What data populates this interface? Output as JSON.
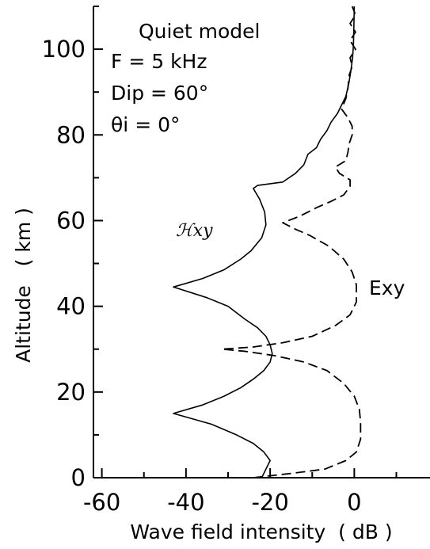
{
  "chart_data": {
    "type": "line",
    "xlabel": "Wave field intensity  ( dB )",
    "ylabel": "Altitude   ( km )",
    "xlim": [
      -62,
      18
    ],
    "ylim": [
      0,
      110
    ],
    "x_ticks": [
      "-60",
      "-40",
      "-20",
      "0"
    ],
    "x_tick_values": [
      -60,
      -40,
      -20,
      0
    ],
    "y_ticks": [
      "0",
      "20",
      "40",
      "60",
      "80",
      "100"
    ],
    "y_tick_values": [
      0,
      20,
      40,
      60,
      80,
      100
    ],
    "annotations": [
      "Quiet model",
      "F = 5 kHz",
      "Dip = 60°",
      "θi = 0°"
    ],
    "series": [
      {
        "name": "ℋxy",
        "style": "solid",
        "points": [
          [
            -22,
            0
          ],
          [
            -21,
            2
          ],
          [
            -20,
            4
          ],
          [
            -21.5,
            6
          ],
          [
            -24,
            8
          ],
          [
            -28,
            10
          ],
          [
            -34,
            12.5
          ],
          [
            -43,
            15
          ],
          [
            -36,
            17
          ],
          [
            -31,
            19
          ],
          [
            -27,
            21
          ],
          [
            -24,
            23
          ],
          [
            -21.5,
            25
          ],
          [
            -20,
            27
          ],
          [
            -19.5,
            29
          ],
          [
            -20,
            31
          ],
          [
            -21,
            33
          ],
          [
            -23,
            35
          ],
          [
            -26,
            37
          ],
          [
            -30,
            40
          ],
          [
            -35,
            42
          ],
          [
            -43,
            44.5
          ],
          [
            -36,
            46.5
          ],
          [
            -31,
            48.5
          ],
          [
            -27,
            51
          ],
          [
            -24.5,
            53
          ],
          [
            -22,
            56
          ],
          [
            -21,
            59
          ],
          [
            -21.3,
            62
          ],
          [
            -22.5,
            65
          ],
          [
            -24,
            67.5
          ],
          [
            -23,
            68.2
          ],
          [
            -17,
            69
          ],
          [
            -14,
            71
          ],
          [
            -12,
            73
          ],
          [
            -11,
            75.5
          ],
          [
            -9,
            77
          ],
          [
            -8,
            79
          ],
          [
            -6.5,
            81
          ],
          [
            -5.5,
            83
          ],
          [
            -4,
            85
          ],
          [
            -3,
            87
          ],
          [
            -2,
            89
          ],
          [
            -1.3,
            92
          ],
          [
            -0.8,
            95
          ],
          [
            -0.4,
            98
          ],
          [
            -0.2,
            101
          ],
          [
            -0.1,
            105
          ],
          [
            0,
            110
          ]
        ]
      },
      {
        "name": "Exy",
        "style": "dashed",
        "points": [
          [
            -24,
            0
          ],
          [
            -15,
            1
          ],
          [
            -7,
            2
          ],
          [
            -2,
            4
          ],
          [
            0.5,
            6
          ],
          [
            1.5,
            9
          ],
          [
            1.5,
            13
          ],
          [
            1.2,
            16
          ],
          [
            0,
            19
          ],
          [
            -2.5,
            22
          ],
          [
            -6.5,
            25
          ],
          [
            -12,
            27
          ],
          [
            -19,
            28.5
          ],
          [
            -26,
            29.5
          ],
          [
            -31.5,
            30
          ],
          [
            -24,
            30.5
          ],
          [
            -17,
            31.5
          ],
          [
            -10,
            33
          ],
          [
            -4.5,
            35.5
          ],
          [
            -1,
            38
          ],
          [
            0.5,
            41
          ],
          [
            0.5,
            45
          ],
          [
            -0.5,
            48
          ],
          [
            -2.5,
            51
          ],
          [
            -6,
            54
          ],
          [
            -10.5,
            56.5
          ],
          [
            -14,
            58
          ],
          [
            -17,
            59.5
          ],
          [
            -13,
            61
          ],
          [
            -9,
            63
          ],
          [
            -5.5,
            64.5
          ],
          [
            -2.5,
            66
          ],
          [
            -1,
            68
          ],
          [
            -1,
            69.5
          ],
          [
            -3.5,
            71
          ],
          [
            -4.5,
            72.5
          ],
          [
            -2,
            74
          ],
          [
            -1.5,
            76
          ],
          [
            -1.2,
            78
          ],
          [
            -0.5,
            80
          ],
          [
            -0.5,
            82
          ],
          [
            -1.5,
            84
          ],
          [
            -3,
            86
          ],
          [
            -2,
            88.5
          ],
          [
            -1.5,
            91
          ],
          [
            -1.2,
            94
          ],
          [
            -0.5,
            96
          ],
          [
            -1,
            98
          ],
          [
            0.3,
            100
          ],
          [
            -1,
            102
          ],
          [
            0.3,
            104
          ],
          [
            -1,
            106
          ],
          [
            0.3,
            108
          ],
          [
            -0.5,
            110
          ]
        ]
      }
    ]
  }
}
